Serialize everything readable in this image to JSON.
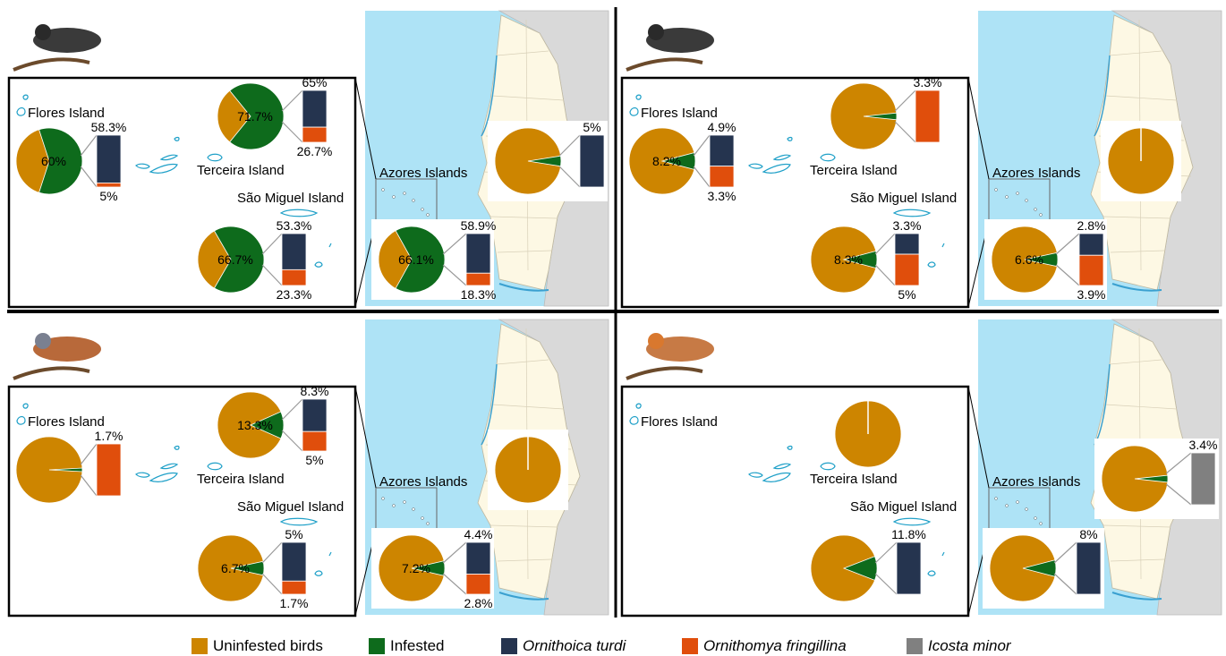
{
  "colors": {
    "uninfested": "#CD8500",
    "infested": "#0E6B1C",
    "ornithoica": "#25344F",
    "ornithomya": "#E04E0C",
    "icosta": "#808080",
    "sea": "#AEE3F6",
    "land": "#FDF8E4",
    "spain": "#D9D9D9"
  },
  "labels": {
    "flores": "Flores Island",
    "terceira": "Terceira Island",
    "saomiguel": "São Miguel Island",
    "azores": "Azores Islands"
  },
  "legend": [
    {
      "key": "uninfested",
      "label": "Uninfested birds",
      "italic": false
    },
    {
      "key": "infested",
      "label": "Infested",
      "italic": false
    },
    {
      "key": "ornithoica",
      "label": "Ornithoica turdi",
      "italic": true
    },
    {
      "key": "ornithomya",
      "label": "Ornithomya fringillina",
      "italic": true
    },
    {
      "key": "icosta",
      "label": "Icosta minor",
      "italic": true
    }
  ],
  "chart_data": [
    {
      "type": "pie",
      "panel": "top-left",
      "bird_icon": "blackbird-icon",
      "charts": [
        {
          "location": "Flores Island",
          "infested_pct": 60,
          "pie_label": "60%",
          "bars": [
            {
              "key": "ornithoica",
              "value": 58.3,
              "label": "58.3%"
            },
            {
              "key": "ornithomya",
              "value": 5,
              "label": "5%"
            }
          ]
        },
        {
          "location": "Terceira Island",
          "infested_pct": 71.7,
          "pie_label": "71.7%",
          "bars": [
            {
              "key": "ornithoica",
              "value": 65,
              "label": "65%"
            },
            {
              "key": "ornithomya",
              "value": 26.7,
              "label": "26.7%"
            }
          ]
        },
        {
          "location": "São Miguel Island",
          "infested_pct": 66.7,
          "pie_label": "66.7%",
          "bars": [
            {
              "key": "ornithoica",
              "value": 53.3,
              "label": "53.3%"
            },
            {
              "key": "ornithomya",
              "value": 23.3,
              "label": "23.3%"
            }
          ]
        },
        {
          "location": "Azores Islands",
          "infested_pct": 66.1,
          "pie_label": "66.1%",
          "bars": [
            {
              "key": "ornithoica",
              "value": 58.9,
              "label": "58.9%"
            },
            {
              "key": "ornithomya",
              "value": 18.3,
              "label": "18.3%"
            }
          ]
        },
        {
          "location": "mainland",
          "infested_pct": 5,
          "pie_label": "",
          "bars": [
            {
              "key": "ornithoica",
              "value": 5,
              "label": "5%"
            }
          ]
        }
      ]
    },
    {
      "type": "pie",
      "panel": "top-right",
      "bird_icon": "warbler-icon",
      "charts": [
        {
          "location": "Flores Island",
          "infested_pct": 8.2,
          "pie_label": "8.2%",
          "bars": [
            {
              "key": "ornithoica",
              "value": 4.9,
              "label": "4.9%"
            },
            {
              "key": "ornithomya",
              "value": 3.3,
              "label": "3.3%"
            }
          ]
        },
        {
          "location": "Terceira Island",
          "infested_pct": 3.3,
          "pie_label": "",
          "bars": [
            {
              "key": "ornithomya",
              "value": 3.3,
              "label": "3.3%"
            }
          ]
        },
        {
          "location": "São Miguel Island",
          "infested_pct": 8.3,
          "pie_label": "8.3%",
          "bars": [
            {
              "key": "ornithoica",
              "value": 3.3,
              "label": "3.3%"
            },
            {
              "key": "ornithomya",
              "value": 5,
              "label": "5%"
            }
          ]
        },
        {
          "location": "Azores Islands",
          "infested_pct": 6.6,
          "pie_label": "6.6%",
          "bars": [
            {
              "key": "ornithoica",
              "value": 2.8,
              "label": "2.8%"
            },
            {
              "key": "ornithomya",
              "value": 3.9,
              "label": "3.9%"
            }
          ]
        },
        {
          "location": "mainland",
          "infested_pct": 0,
          "pie_label": "",
          "bars": []
        }
      ]
    },
    {
      "type": "pie",
      "panel": "bottom-left",
      "bird_icon": "chaffinch-icon",
      "charts": [
        {
          "location": "Flores Island",
          "infested_pct": 1.7,
          "pie_label": "",
          "bars": [
            {
              "key": "ornithomya",
              "value": 1.7,
              "label": "1.7%"
            }
          ]
        },
        {
          "location": "Terceira Island",
          "infested_pct": 13.3,
          "pie_label": "13.3%",
          "bars": [
            {
              "key": "ornithoica",
              "value": 8.3,
              "label": "8.3%"
            },
            {
              "key": "ornithomya",
              "value": 5,
              "label": "5%"
            }
          ]
        },
        {
          "location": "São Miguel Island",
          "infested_pct": 6.7,
          "pie_label": "6.7%",
          "bars": [
            {
              "key": "ornithoica",
              "value": 5,
              "label": "5%"
            },
            {
              "key": "ornithomya",
              "value": 1.7,
              "label": "1.7%"
            }
          ]
        },
        {
          "location": "Azores Islands",
          "infested_pct": 7.2,
          "pie_label": "7.2%",
          "bars": [
            {
              "key": "ornithoica",
              "value": 4.4,
              "label": "4.4%"
            },
            {
              "key": "ornithomya",
              "value": 2.8,
              "label": "2.8%"
            }
          ]
        },
        {
          "location": "mainland",
          "infested_pct": 0,
          "pie_label": "",
          "bars": []
        }
      ]
    },
    {
      "type": "pie",
      "panel": "bottom-right",
      "bird_icon": "robin-icon",
      "charts": [
        {
          "location": "Terceira Island",
          "infested_pct": 0,
          "pie_label": "",
          "bars": []
        },
        {
          "location": "São Miguel Island",
          "infested_pct": 11.8,
          "pie_label": "",
          "bars": [
            {
              "key": "ornithoica",
              "value": 11.8,
              "label": "11.8%"
            }
          ]
        },
        {
          "location": "Azores Islands",
          "infested_pct": 8,
          "pie_label": "",
          "bars": [
            {
              "key": "ornithoica",
              "value": 8,
              "label": "8%"
            }
          ]
        },
        {
          "location": "mainland",
          "infested_pct": 3.4,
          "pie_label": "",
          "bars": [
            {
              "key": "icosta",
              "value": 3.4,
              "label": "3.4%"
            }
          ]
        }
      ]
    }
  ]
}
